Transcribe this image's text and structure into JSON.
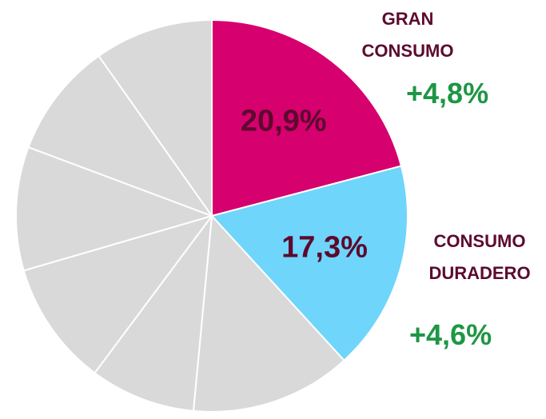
{
  "chart_data": {
    "type": "pie",
    "categories": [
      "GRAN CONSUMO",
      "CONSUMO DURADERO",
      null,
      null,
      null,
      null,
      null,
      null
    ],
    "values": [
      20.9,
      17.3,
      13.3,
      8.7,
      10.3,
      10.2,
      9.5,
      9.8
    ],
    "value_labels": [
      "20,9%",
      "17,3%",
      null,
      null,
      null,
      null,
      null,
      null
    ],
    "colors": [
      "#d6006e",
      "#6fd5fb",
      "#d9d9d9",
      "#d9d9d9",
      "#d9d9d9",
      "#d9d9d9",
      "#d9d9d9",
      "#d9d9d9"
    ],
    "annotations": [
      "+4,8%",
      "+4,6%"
    ]
  }
}
